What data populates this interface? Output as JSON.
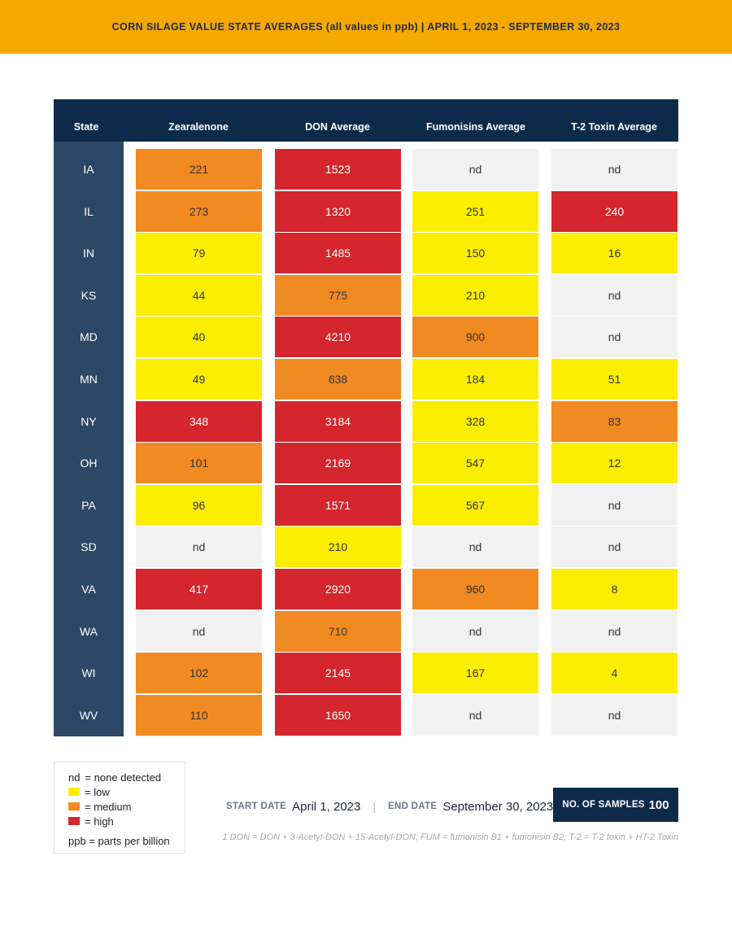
{
  "banner": {
    "title": "CORN SILAGE VALUE STATE AVERAGES (all values in ppb) | APRIL 1, 2023 - SEPTEMBER 30, 2023"
  },
  "table": {
    "headers": [
      "State",
      "Zearalenone",
      "DON Average",
      "Fumonisins Average",
      "T-2 Toxin Average"
    ],
    "rows": [
      {
        "state": "IA",
        "cells": [
          {
            "v": "221",
            "lvl": "medium"
          },
          {
            "v": "1523",
            "lvl": "high"
          },
          {
            "v": "nd",
            "lvl": "nd"
          },
          {
            "v": "nd",
            "lvl": "nd"
          }
        ]
      },
      {
        "state": "IL",
        "cells": [
          {
            "v": "273",
            "lvl": "medium"
          },
          {
            "v": "1320",
            "lvl": "high"
          },
          {
            "v": "251",
            "lvl": "low"
          },
          {
            "v": "240",
            "lvl": "high"
          }
        ]
      },
      {
        "state": "IN",
        "cells": [
          {
            "v": "79",
            "lvl": "low"
          },
          {
            "v": "1485",
            "lvl": "high"
          },
          {
            "v": "150",
            "lvl": "low"
          },
          {
            "v": "16",
            "lvl": "low"
          }
        ]
      },
      {
        "state": "KS",
        "cells": [
          {
            "v": "44",
            "lvl": "low"
          },
          {
            "v": "775",
            "lvl": "medium"
          },
          {
            "v": "210",
            "lvl": "low"
          },
          {
            "v": "nd",
            "lvl": "nd"
          }
        ]
      },
      {
        "state": "MD",
        "cells": [
          {
            "v": "40",
            "lvl": "low"
          },
          {
            "v": "4210",
            "lvl": "high"
          },
          {
            "v": "900",
            "lvl": "medium"
          },
          {
            "v": "nd",
            "lvl": "nd"
          }
        ]
      },
      {
        "state": "MN",
        "cells": [
          {
            "v": "49",
            "lvl": "low"
          },
          {
            "v": "638",
            "lvl": "medium"
          },
          {
            "v": "184",
            "lvl": "low"
          },
          {
            "v": "51",
            "lvl": "low"
          }
        ]
      },
      {
        "state": "NY",
        "cells": [
          {
            "v": "348",
            "lvl": "high"
          },
          {
            "v": "3184",
            "lvl": "high"
          },
          {
            "v": "328",
            "lvl": "low"
          },
          {
            "v": "83",
            "lvl": "medium"
          }
        ]
      },
      {
        "state": "OH",
        "cells": [
          {
            "v": "101",
            "lvl": "medium"
          },
          {
            "v": "2169",
            "lvl": "high"
          },
          {
            "v": "547",
            "lvl": "low"
          },
          {
            "v": "12",
            "lvl": "low"
          }
        ]
      },
      {
        "state": "PA",
        "cells": [
          {
            "v": "96",
            "lvl": "low"
          },
          {
            "v": "1571",
            "lvl": "high"
          },
          {
            "v": "567",
            "lvl": "low"
          },
          {
            "v": "nd",
            "lvl": "nd"
          }
        ]
      },
      {
        "state": "SD",
        "cells": [
          {
            "v": "nd",
            "lvl": "nd"
          },
          {
            "v": "210",
            "lvl": "low"
          },
          {
            "v": "nd",
            "lvl": "nd"
          },
          {
            "v": "nd",
            "lvl": "nd"
          }
        ]
      },
      {
        "state": "VA",
        "cells": [
          {
            "v": "417",
            "lvl": "high"
          },
          {
            "v": "2920",
            "lvl": "high"
          },
          {
            "v": "960",
            "lvl": "medium"
          },
          {
            "v": "8",
            "lvl": "low"
          }
        ]
      },
      {
        "state": "WA",
        "cells": [
          {
            "v": "nd",
            "lvl": "nd"
          },
          {
            "v": "710",
            "lvl": "medium"
          },
          {
            "v": "nd",
            "lvl": "nd"
          },
          {
            "v": "nd",
            "lvl": "nd"
          }
        ]
      },
      {
        "state": "WI",
        "cells": [
          {
            "v": "102",
            "lvl": "medium"
          },
          {
            "v": "2145",
            "lvl": "high"
          },
          {
            "v": "167",
            "lvl": "low"
          },
          {
            "v": "4",
            "lvl": "low"
          }
        ]
      },
      {
        "state": "WV",
        "cells": [
          {
            "v": "110",
            "lvl": "medium"
          },
          {
            "v": "1650",
            "lvl": "high"
          },
          {
            "v": "nd",
            "lvl": "nd"
          },
          {
            "v": "nd",
            "lvl": "nd"
          }
        ]
      }
    ]
  },
  "colors": {
    "nd": "#f1f1f1",
    "low": "#fcee00",
    "medium": "#f28a22",
    "high": "#d4262c",
    "header": "#0d2a4a",
    "state_column": "#2c4866",
    "banner": "#f5a800"
  },
  "legend": {
    "nd_key": "nd",
    "nd_text": "= none detected",
    "low_text": "= low",
    "medium_text": "= medium",
    "high_text": "= high",
    "ppb_text": "ppb = parts per billion"
  },
  "dates": {
    "start_label": "START DATE",
    "start_value": "April 1, 2023",
    "separator": "|",
    "end_label": "END DATE",
    "end_value": "September 30, 2023"
  },
  "samples": {
    "label": "NO. OF SAMPLES",
    "value": "100"
  },
  "footnote": "1 DON = DON + 3-Acetyl-DON + 15-Acetyl-DON; FUM = fumonisin B1 + fumonisin B2; T-2 = T-2 toxin + HT-2 Toxin"
}
